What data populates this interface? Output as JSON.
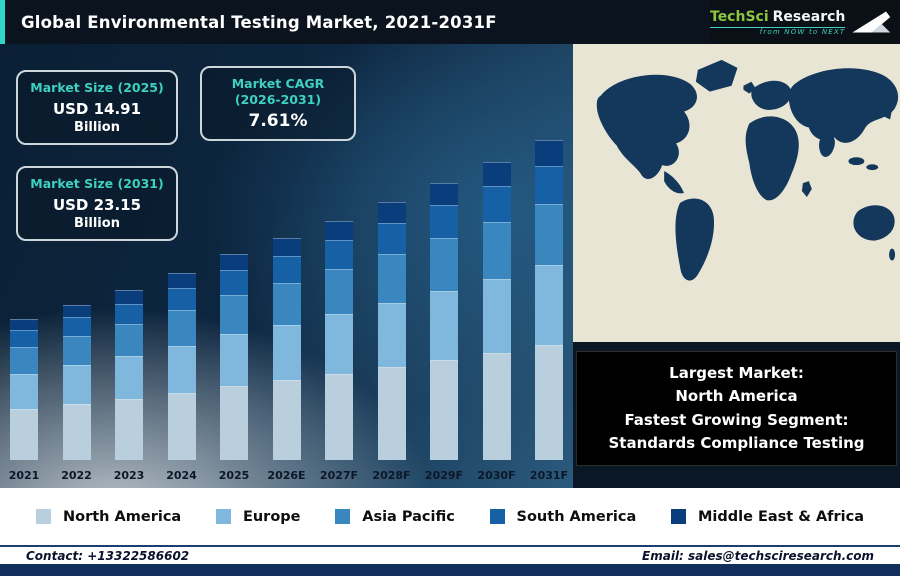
{
  "header": {
    "title": "Global Environmental Testing Market, 2021-2031F",
    "logo": {
      "brand_primary": "TechSci",
      "brand_secondary": "Research",
      "tagline": "from NOW to NEXT"
    }
  },
  "stats": {
    "box1": {
      "label": "Market Size (2025)",
      "value": "USD 14.91",
      "unit": "Billion"
    },
    "box2": {
      "label_line1": "Market CAGR",
      "label_line2": "(2026-2031)",
      "value": "7.61%"
    },
    "box3": {
      "label": "Market Size (2031)",
      "value": "USD 23.15",
      "unit": "Billion"
    }
  },
  "highlight_box": {
    "line1": "Largest Market:",
    "line2": "North America",
    "line3": "Fastest Growing Segment:",
    "line4": "Standards Compliance Testing"
  },
  "legend": {
    "items": [
      {
        "label": "North America",
        "color": "#b9cfdd"
      },
      {
        "label": "Europe",
        "color": "#7fb8dc"
      },
      {
        "label": "Asia Pacific",
        "color": "#3a87c0"
      },
      {
        "label": "South America",
        "color": "#1660a5"
      },
      {
        "label": "Middle East & Africa",
        "color": "#0a3d7c"
      }
    ]
  },
  "footer": {
    "contact": "Contact: +13322586602",
    "email": "Email: sales@techsciresearch.com"
  },
  "colors": {
    "accent_teal": "#2fd6c3",
    "header_bg": "#0b131e",
    "map_ocean": "#e9e5d4",
    "map_land": "#14375c"
  },
  "chart_data": {
    "type": "bar",
    "stacked": true,
    "title": "Global Environmental Testing Market, 2021-2031F",
    "units": "USD Billion",
    "categories": [
      "2021",
      "2022",
      "2023",
      "2024",
      "2025",
      "2026E",
      "2027F",
      "2028F",
      "2029F",
      "2030F",
      "2031F"
    ],
    "series": [
      {
        "name": "North America",
        "color": "#b9cfdd",
        "values": [
          3.67,
          4.03,
          4.43,
          4.86,
          5.37,
          5.77,
          6.21,
          6.69,
          7.2,
          7.74,
          8.33
        ]
      },
      {
        "name": "Europe",
        "color": "#7fb8dc",
        "values": [
          2.55,
          2.8,
          3.08,
          3.38,
          3.73,
          4.01,
          4.32,
          4.65,
          5.0,
          5.38,
          5.79
        ]
      },
      {
        "name": "Asia Pacific",
        "color": "#3a87c0",
        "values": [
          1.94,
          2.13,
          2.34,
          2.57,
          2.83,
          3.05,
          3.28,
          3.53,
          3.8,
          4.09,
          4.4
        ]
      },
      {
        "name": "South America",
        "color": "#1660a5",
        "values": [
          1.22,
          1.34,
          1.48,
          1.62,
          1.79,
          1.92,
          2.07,
          2.23,
          2.4,
          2.58,
          2.78
        ]
      },
      {
        "name": "Middle East & Africa",
        "color": "#0a3d7c",
        "values": [
          0.82,
          0.9,
          0.98,
          1.08,
          1.19,
          1.28,
          1.38,
          1.49,
          1.6,
          1.72,
          1.85
        ]
      }
    ],
    "totals": [
      10.2,
      11.2,
      12.3,
      13.5,
      14.91,
      16.04,
      17.26,
      18.58,
      19.99,
      21.51,
      23.15
    ],
    "ylim": [
      0,
      24
    ],
    "legend_position": "bottom",
    "grid": false,
    "annotations": {
      "market_size_2025_usd_billion": 14.91,
      "market_cagr_2026_2031": "7.61%",
      "market_size_2031_usd_billion": 23.15,
      "largest_market": "North America",
      "fastest_growing_segment": "Standards Compliance Testing"
    }
  }
}
